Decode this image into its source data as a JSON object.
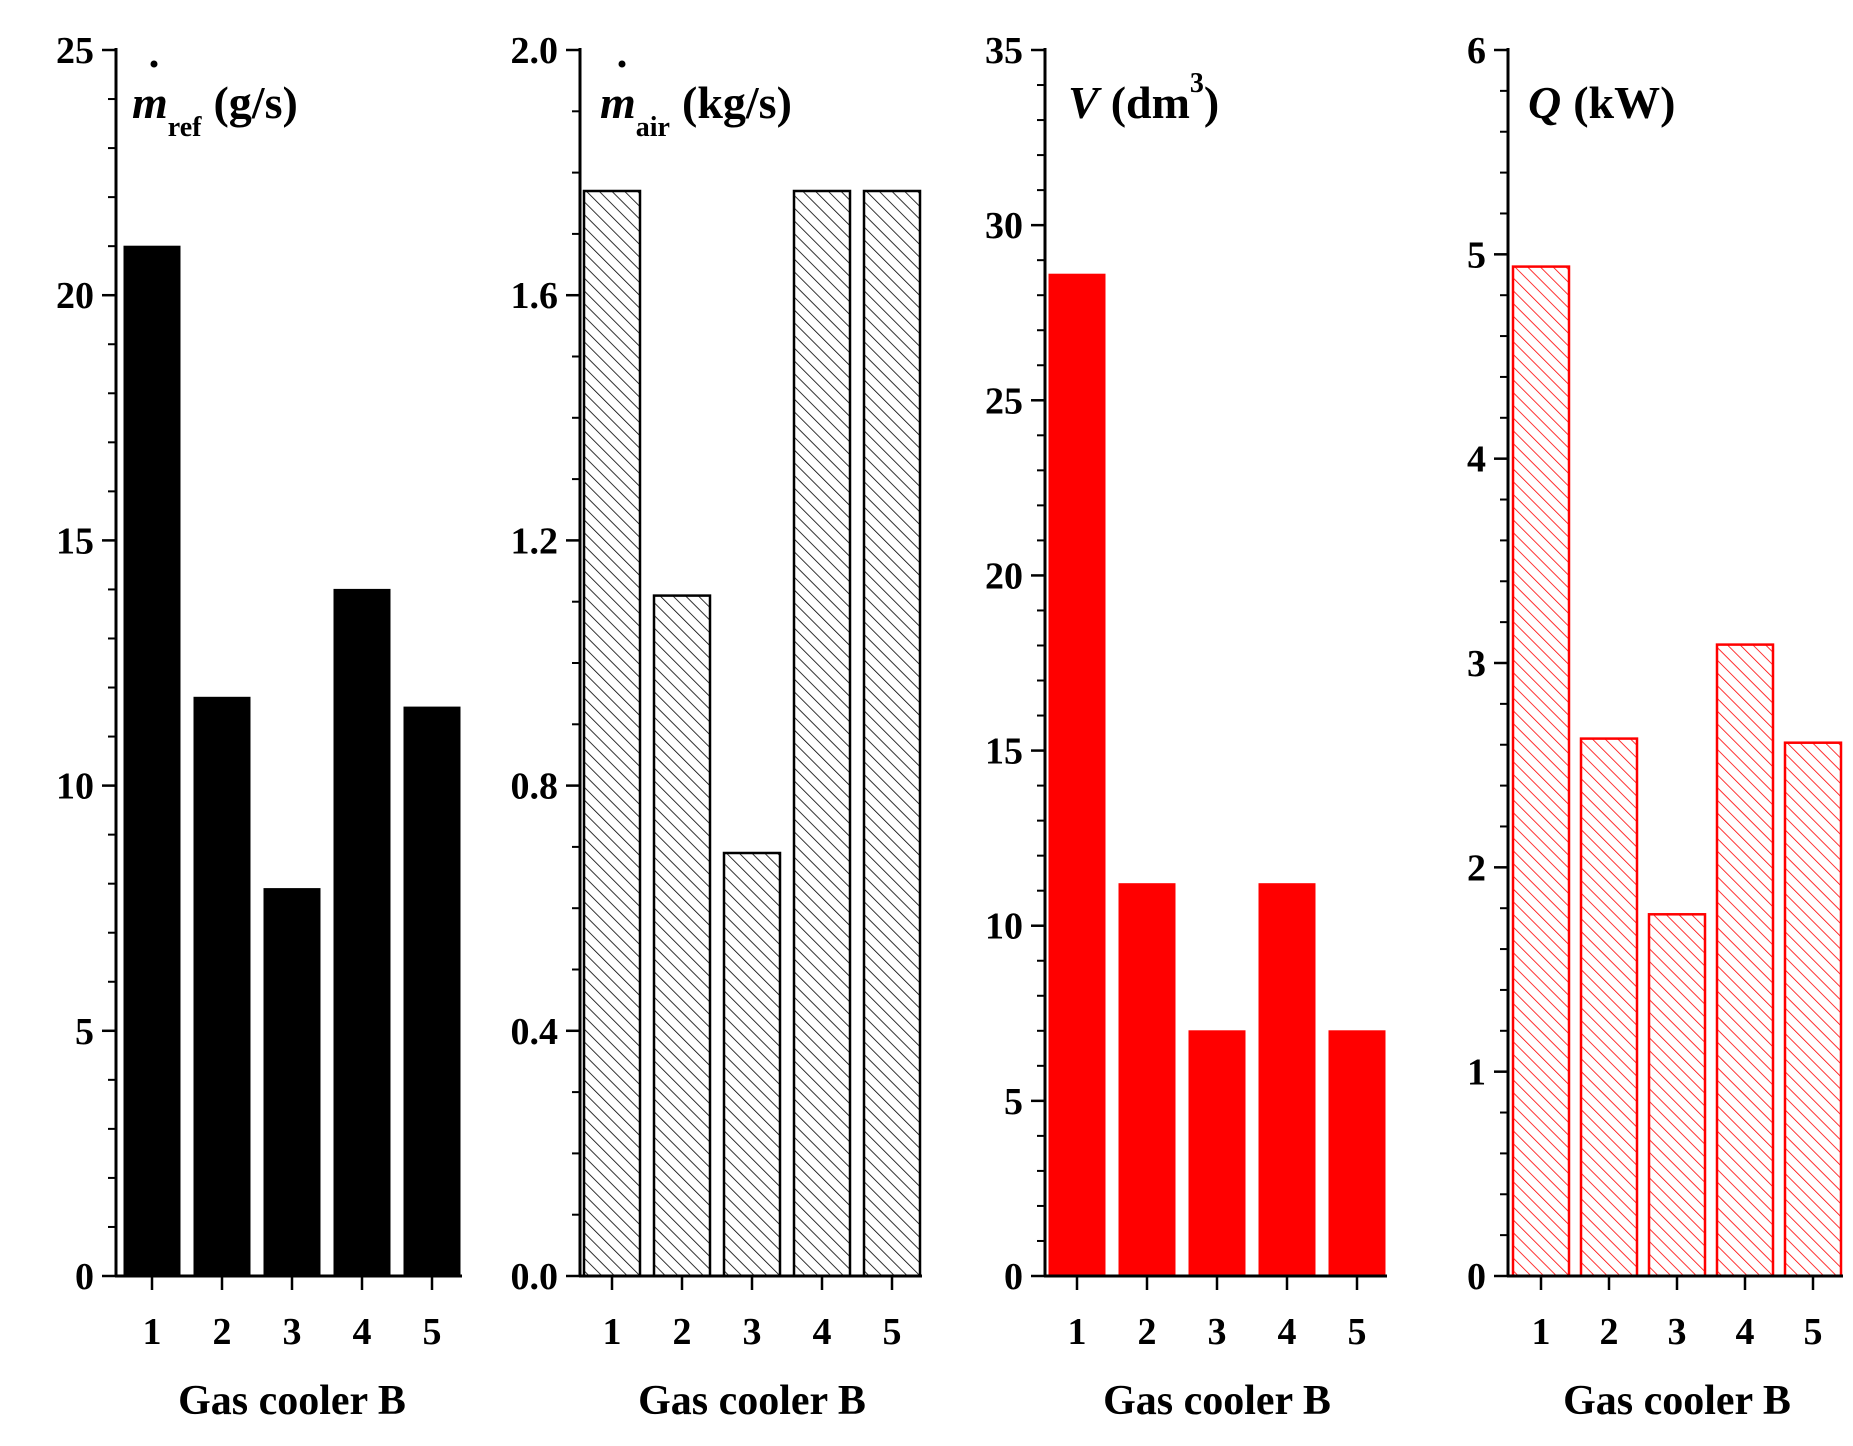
{
  "chart_data": [
    {
      "type": "bar",
      "title_symbol": "m",
      "title_subscript": "ref",
      "title_unit": "(g/s)",
      "xlabel": "Gas cooler B",
      "categories": [
        "1",
        "2",
        "3",
        "4",
        "5"
      ],
      "values": [
        21.0,
        11.8,
        7.9,
        14.0,
        11.6
      ],
      "ylim": [
        0,
        25
      ],
      "yticks": [
        "0",
        "5",
        "10",
        "15",
        "20",
        "25"
      ],
      "ytick_values": [
        0,
        5,
        10,
        15,
        20,
        25
      ],
      "minor_step": 1,
      "fill": "solid",
      "color": "#000000"
    },
    {
      "type": "bar",
      "title_symbol": "m",
      "title_subscript": "air",
      "title_unit": "(kg/s)",
      "xlabel": "Gas cooler B",
      "categories": [
        "1",
        "2",
        "3",
        "4",
        "5"
      ],
      "values": [
        1.77,
        1.11,
        0.69,
        1.77,
        1.77
      ],
      "ylim": [
        0,
        2.0
      ],
      "yticks": [
        "0.0",
        "0.4",
        "0.8",
        "1.2",
        "1.6",
        "2.0"
      ],
      "ytick_values": [
        0,
        0.4,
        0.8,
        1.2,
        1.6,
        2.0
      ],
      "minor_step": 0.1,
      "fill": "hatch",
      "color": "#000000"
    },
    {
      "type": "bar",
      "title_symbol": "V",
      "title_unit": "(dm",
      "title_superscript": "3",
      "title_close": ")",
      "xlabel": "Gas cooler B",
      "categories": [
        "1",
        "2",
        "3",
        "4",
        "5"
      ],
      "values": [
        28.6,
        11.2,
        7.0,
        11.2,
        7.0
      ],
      "ylim": [
        0,
        35
      ],
      "yticks": [
        "0",
        "5",
        "10",
        "15",
        "20",
        "25",
        "30",
        "35"
      ],
      "ytick_values": [
        0,
        5,
        10,
        15,
        20,
        25,
        30,
        35
      ],
      "minor_step": 1,
      "fill": "solid",
      "color": "#ff0000"
    },
    {
      "type": "bar",
      "title_symbol": "Q",
      "title_unit": "(kW)",
      "xlabel": "Gas cooler B",
      "categories": [
        "1",
        "2",
        "3",
        "4",
        "5"
      ],
      "values": [
        4.94,
        2.63,
        1.77,
        3.09,
        2.61
      ],
      "ylim": [
        0,
        6
      ],
      "yticks": [
        "0",
        "1",
        "2",
        "3",
        "4",
        "5",
        "6"
      ],
      "ytick_values": [
        0,
        1,
        2,
        3,
        4,
        5,
        6
      ],
      "minor_step": 0.2,
      "fill": "hatch",
      "color": "#ff0000"
    }
  ]
}
